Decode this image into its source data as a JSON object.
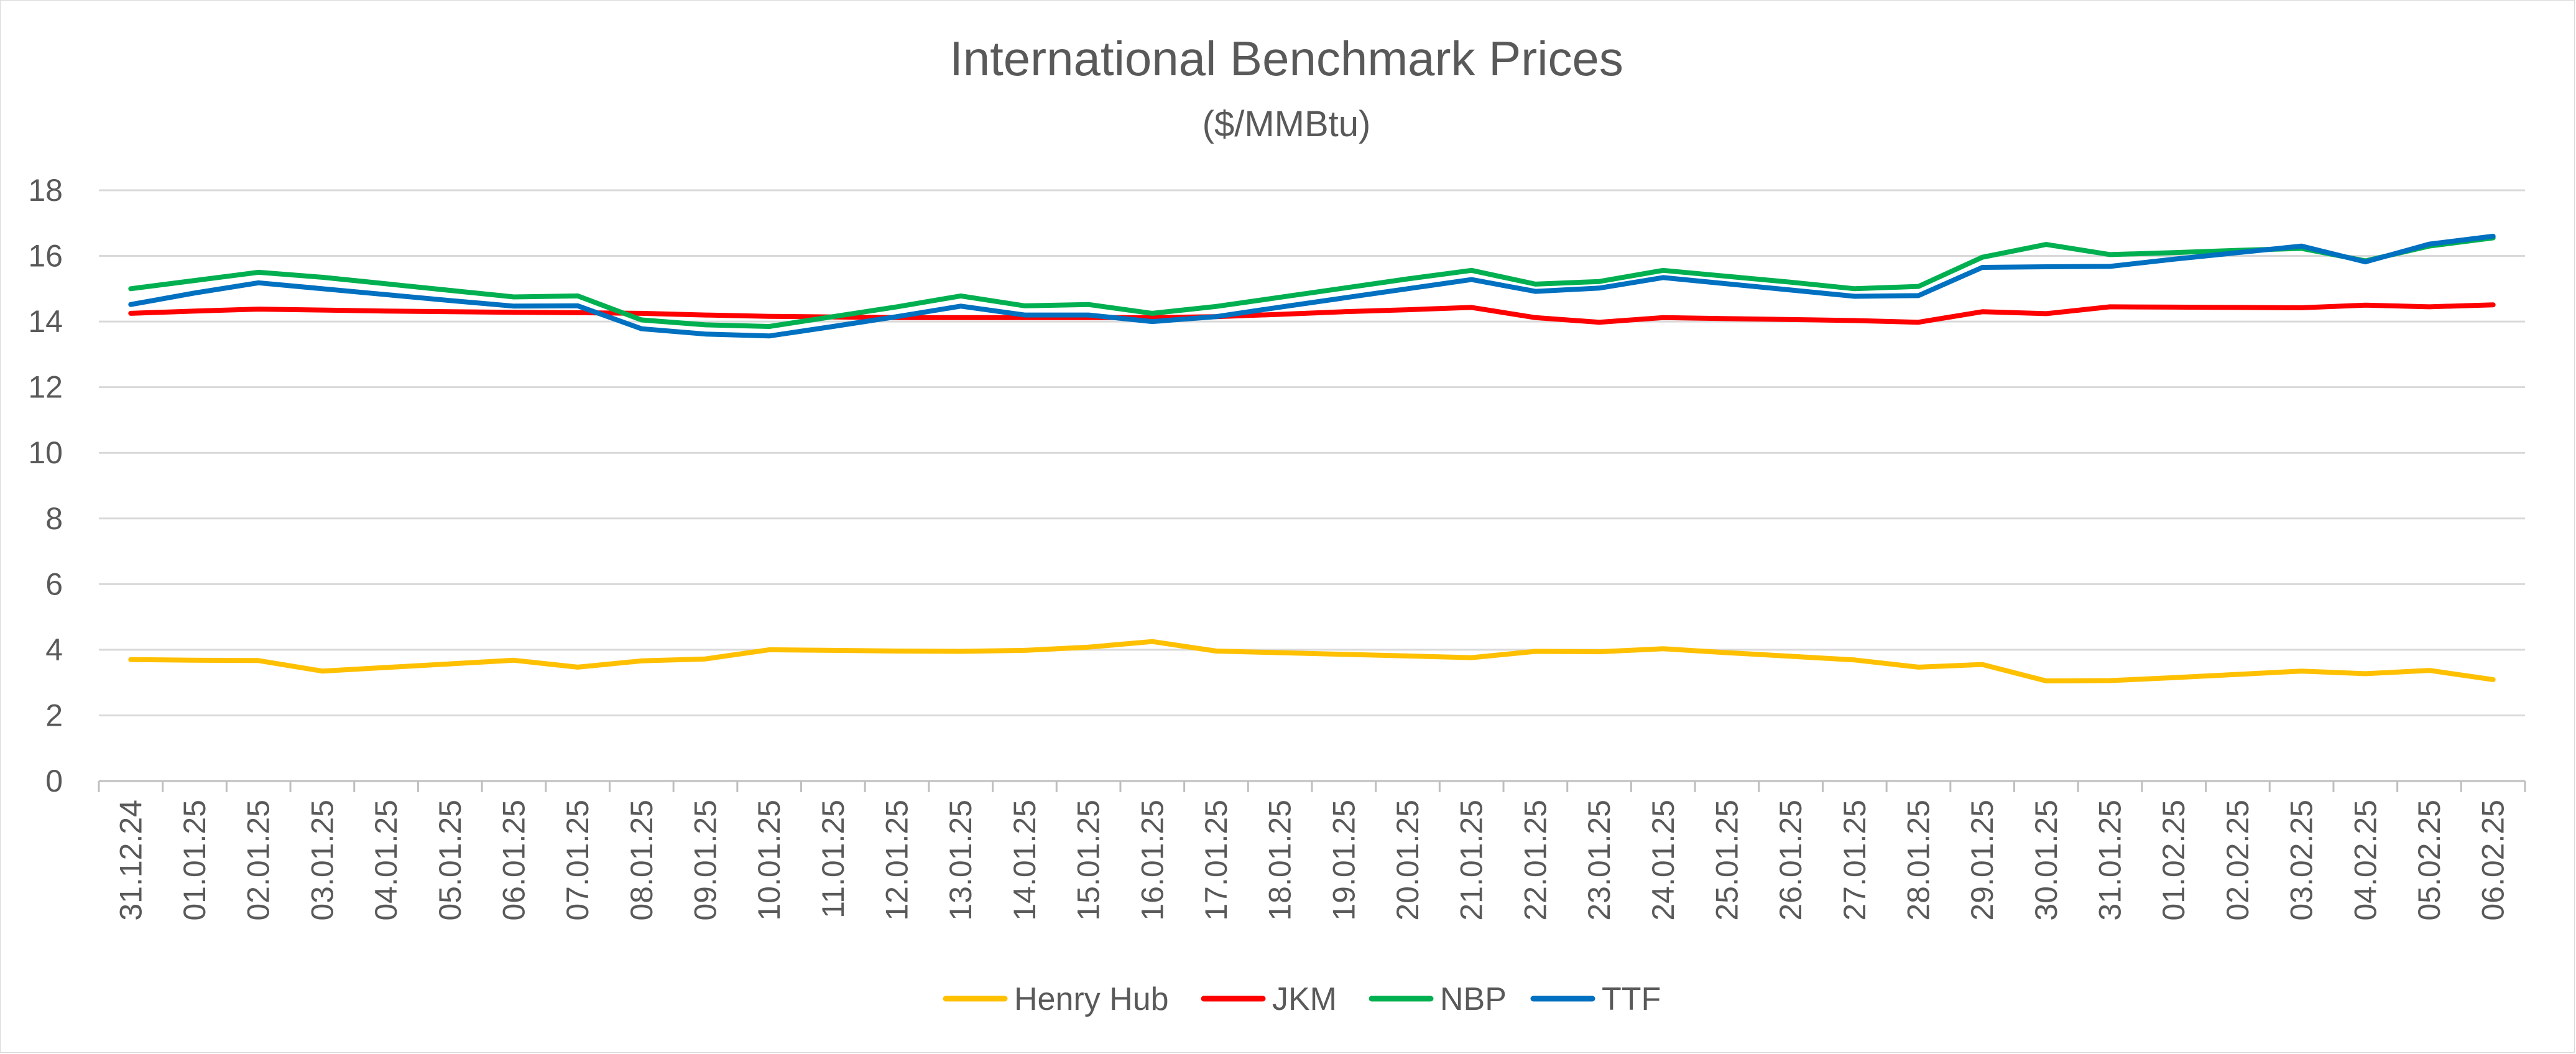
{
  "chart_data": {
    "type": "line",
    "title": "International Benchmark Prices",
    "subtitle": "($/MMBtu)",
    "xlabel": "",
    "ylabel": "",
    "ylim": [
      0,
      18
    ],
    "ytick_step": 2,
    "grid": true,
    "legend_position": "bottom",
    "categories": [
      "31.12.24",
      "01.01.25",
      "02.01.25",
      "03.01.25",
      "04.01.25",
      "05.01.25",
      "06.01.25",
      "07.01.25",
      "08.01.25",
      "09.01.25",
      "10.01.25",
      "11.01.25",
      "12.01.25",
      "13.01.25",
      "14.01.25",
      "15.01.25",
      "16.01.25",
      "17.01.25",
      "18.01.25",
      "19.01.25",
      "20.01.25",
      "21.01.25",
      "22.01.25",
      "23.01.25",
      "24.01.25",
      "25.01.25",
      "26.01.25",
      "27.01.25",
      "28.01.25",
      "29.01.25",
      "30.01.25",
      "31.01.25",
      "01.02.25",
      "02.02.25",
      "03.02.25",
      "04.02.25",
      "05.02.25",
      "06.02.25"
    ],
    "series": [
      {
        "name": "Henry Hub",
        "color": "#FFC000",
        "values": [
          3.7,
          3.68,
          3.67,
          3.35,
          3.46,
          3.57,
          3.68,
          3.47,
          3.66,
          3.72,
          4.0,
          3.98,
          3.96,
          3.95,
          3.98,
          4.08,
          4.25,
          3.96,
          3.91,
          3.86,
          3.81,
          3.76,
          3.95,
          3.94,
          4.03,
          3.91,
          3.8,
          3.69,
          3.47,
          3.55,
          3.05,
          3.06,
          3.15,
          3.25,
          3.35,
          3.27,
          3.37,
          3.09
        ]
      },
      {
        "name": "JKM",
        "color": "#FF0000",
        "values": [
          14.25,
          14.32,
          14.38,
          14.35,
          14.32,
          14.3,
          14.28,
          14.27,
          14.25,
          14.2,
          14.16,
          14.14,
          14.12,
          14.12,
          14.12,
          14.12,
          14.12,
          14.15,
          14.22,
          14.3,
          14.36,
          14.43,
          14.12,
          13.98,
          14.12,
          14.09,
          14.06,
          14.03,
          13.98,
          14.3,
          14.24,
          14.45,
          14.44,
          14.43,
          14.42,
          14.5,
          14.45,
          14.51
        ]
      },
      {
        "name": "NBP",
        "color": "#00B050",
        "values": [
          15.0,
          15.25,
          15.5,
          15.35,
          15.15,
          14.95,
          14.75,
          14.78,
          14.05,
          13.9,
          13.85,
          14.15,
          14.45,
          14.78,
          14.48,
          14.52,
          14.25,
          14.46,
          14.74,
          15.02,
          15.3,
          15.56,
          15.14,
          15.22,
          15.56,
          15.38,
          15.2,
          15.0,
          15.07,
          15.96,
          16.35,
          16.04,
          16.1,
          16.17,
          16.23,
          15.85,
          16.3,
          16.55
        ]
      },
      {
        "name": "TTF",
        "color": "#0070C0",
        "values": [
          14.52,
          14.87,
          15.18,
          15.0,
          14.82,
          14.64,
          14.47,
          14.48,
          13.78,
          13.62,
          13.56,
          13.85,
          14.15,
          14.47,
          14.2,
          14.2,
          14.0,
          14.15,
          14.44,
          14.72,
          15.0,
          15.28,
          14.92,
          15.02,
          15.34,
          15.15,
          14.96,
          14.77,
          14.79,
          15.65,
          15.67,
          15.68,
          15.9,
          16.1,
          16.3,
          15.82,
          16.36,
          16.6
        ]
      }
    ]
  }
}
